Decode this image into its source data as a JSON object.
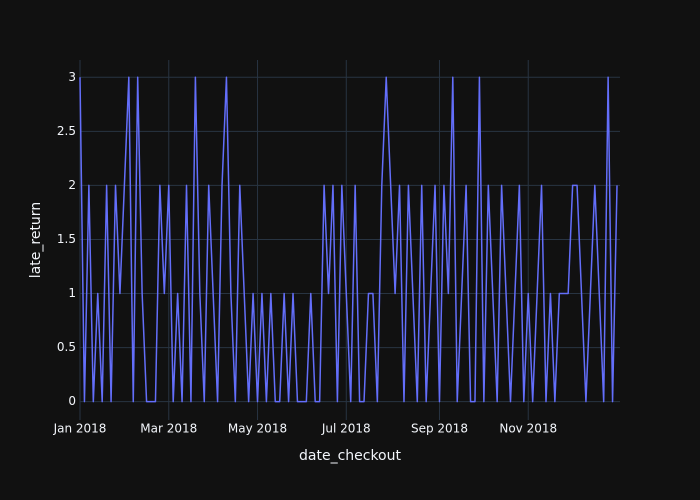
{
  "chart_data": {
    "type": "line",
    "xlabel": "date_checkout",
    "ylabel": "late_return",
    "categories": [
      "Jan 2018",
      null,
      null,
      null,
      null,
      null,
      null,
      null,
      null,
      null,
      null,
      null,
      null,
      null,
      null,
      null,
      null,
      null,
      null,
      null,
      "Mar 2018",
      null,
      null,
      null,
      null,
      null,
      null,
      null,
      null,
      null,
      null,
      null,
      null,
      null,
      null,
      null,
      null,
      null,
      null,
      null,
      "May 2018",
      null,
      null,
      null,
      null,
      null,
      null,
      null,
      null,
      null,
      null,
      null,
      null,
      null,
      null,
      null,
      null,
      null,
      null,
      null,
      "Jul 2018",
      null,
      null,
      null,
      null,
      null,
      null,
      null,
      null,
      null,
      null,
      null,
      null,
      null,
      null,
      null,
      null,
      null,
      null,
      null,
      null,
      "Sep 2018",
      null,
      null,
      null,
      null,
      null,
      null,
      null,
      null,
      null,
      null,
      null,
      null,
      null,
      null,
      null,
      null,
      null,
      null,
      null,
      "Nov 2018",
      null,
      null,
      null,
      null,
      null,
      null,
      null,
      null,
      null,
      null,
      null,
      null,
      null,
      null,
      null,
      null,
      null,
      null,
      null,
      null
    ],
    "series": [
      {
        "name": "late_return",
        "color": "#636efa",
        "values": [
          3,
          0,
          2,
          0,
          1,
          0,
          2,
          0,
          2,
          1,
          2,
          3,
          0,
          3,
          1,
          0,
          0,
          0,
          2,
          1,
          2,
          0,
          1,
          0,
          2,
          0,
          3,
          1,
          0,
          2,
          1,
          0,
          2,
          3,
          1,
          0,
          2,
          1,
          0,
          1,
          0,
          1,
          0,
          1,
          0,
          0,
          1,
          0,
          1,
          0,
          0,
          0,
          1,
          0,
          0,
          2,
          1,
          2,
          0,
          2,
          1,
          0,
          2,
          0,
          0,
          1,
          1,
          0,
          2,
          3,
          2,
          1,
          2,
          0,
          2,
          1,
          0,
          2,
          0,
          1,
          2,
          0,
          2,
          1,
          3,
          0,
          1,
          2,
          0,
          0,
          3,
          0,
          2,
          1,
          0,
          2,
          1,
          0,
          1,
          2,
          0,
          1,
          0,
          1,
          2,
          0,
          1,
          0,
          1,
          1,
          1,
          2,
          2,
          1,
          0,
          1,
          2,
          1,
          0,
          3,
          0,
          2
        ]
      }
    ],
    "ylim": [
      -0.17,
      3.16
    ],
    "yticks": [
      0,
      0.5,
      1,
      1.5,
      2,
      2.5,
      3
    ],
    "grid": true
  }
}
